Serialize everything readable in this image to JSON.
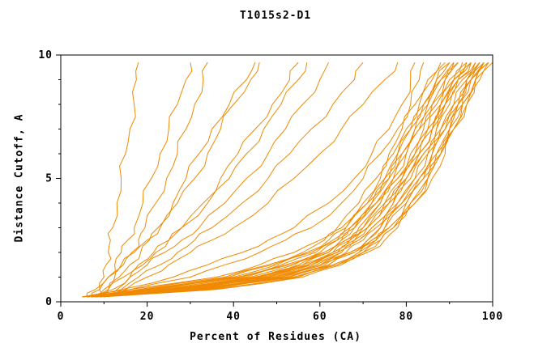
{
  "chart_data": {
    "type": "line",
    "title": "T1015s2-D1",
    "xlabel": "Percent of Residues (CA)",
    "ylabel": "Distance Cutoff, A",
    "xlim": [
      0,
      100
    ],
    "ylim": [
      0,
      10
    ],
    "x_ticks_major": [
      0,
      20,
      40,
      60,
      80,
      100
    ],
    "x_ticks_minor": [
      10,
      30,
      50,
      70,
      90
    ],
    "y_ticks_major": [
      0,
      5,
      10
    ],
    "y_ticks_minor": [
      1,
      2,
      3,
      4,
      6,
      7,
      8,
      9
    ],
    "grid": false,
    "legend": "none",
    "line_color": "#ef8a00",
    "axis_color": "#000000",
    "background": "#ffffff",
    "y_levels": [
      0.2,
      0.5,
      1,
      1.5,
      2,
      2.5,
      3,
      4,
      5,
      6,
      7,
      8,
      9,
      9.7
    ],
    "series": [
      {
        "x": [
          8,
          9,
          10,
          10.5,
          11,
          11.5,
          12,
          13,
          14,
          15,
          16,
          17,
          17.5,
          18
        ]
      },
      {
        "x": [
          7,
          9,
          11,
          12.5,
          14,
          15.5,
          17,
          19,
          21,
          23,
          25,
          27,
          29,
          30
        ]
      },
      {
        "x": [
          8,
          10,
          12.5,
          14.5,
          16.5,
          18,
          19.5,
          22,
          24.5,
          27,
          29,
          31,
          33,
          34
        ]
      },
      {
        "x": [
          9,
          11,
          13.5,
          16,
          18.5,
          20.5,
          22.5,
          26,
          29,
          32,
          35,
          39,
          43,
          45
        ]
      },
      {
        "x": [
          6,
          8,
          11,
          14,
          17,
          20,
          23,
          27,
          31,
          34,
          37,
          40,
          44,
          46
        ]
      },
      {
        "x": [
          10,
          13,
          16,
          19,
          22,
          25,
          28,
          33,
          37,
          41,
          45,
          49,
          53,
          55
        ]
      },
      {
        "x": [
          8,
          11,
          14.5,
          18,
          21.5,
          25,
          28,
          34,
          39,
          43,
          47,
          51,
          55,
          57
        ]
      },
      {
        "x": [
          9,
          12,
          16,
          20,
          24,
          28,
          32,
          38,
          43,
          48,
          52,
          56,
          60,
          62
        ]
      },
      {
        "x": [
          10,
          14,
          18,
          23,
          27,
          31,
          35,
          42,
          48,
          53,
          58,
          63,
          68,
          70
        ]
      },
      {
        "x": [
          11,
          15,
          20,
          25,
          30,
          35,
          40,
          48,
          54,
          60,
          65,
          70,
          75,
          78
        ]
      },
      {
        "x": [
          7,
          14,
          26,
          34,
          42,
          48,
          54,
          62,
          68,
          72,
          76,
          79,
          81,
          82
        ]
      },
      {
        "x": [
          8,
          16,
          30,
          38,
          46,
          52,
          58,
          65,
          70,
          74,
          78,
          81,
          83,
          84
        ]
      },
      {
        "x": [
          5,
          25,
          45,
          55,
          62,
          66,
          69,
          74,
          78,
          81,
          84,
          87,
          90,
          93
        ]
      },
      {
        "x": [
          6,
          28,
          48,
          58,
          64,
          68,
          71,
          76,
          80,
          83,
          86,
          89,
          92,
          95
        ]
      },
      {
        "x": [
          7,
          30,
          50,
          60,
          66,
          70,
          73,
          78,
          82,
          85,
          88,
          91,
          94,
          97
        ]
      },
      {
        "x": [
          8,
          32,
          52,
          62,
          68,
          72,
          75,
          80,
          84,
          87,
          90,
          93,
          96,
          99
        ]
      },
      {
        "x": [
          6,
          26,
          46,
          56,
          63,
          67,
          70,
          75,
          79,
          82,
          85,
          88,
          91,
          94
        ]
      },
      {
        "x": [
          7,
          29,
          49,
          59,
          65,
          69,
          72,
          77,
          81,
          84,
          87,
          90,
          93,
          96
        ]
      },
      {
        "x": [
          5,
          24,
          44,
          54,
          61,
          65,
          68,
          73,
          77,
          80,
          83,
          86,
          89,
          92
        ]
      },
      {
        "x": [
          8,
          33,
          53,
          63,
          69,
          73,
          76,
          81,
          85,
          88,
          91,
          94,
          97,
          100
        ]
      },
      {
        "x": [
          6,
          27,
          47,
          57,
          64,
          68,
          71,
          76,
          80,
          83,
          86,
          89,
          92,
          95
        ]
      },
      {
        "x": [
          7,
          31,
          51,
          61,
          67,
          71,
          74,
          79,
          83,
          86,
          89,
          92,
          95,
          98
        ]
      },
      {
        "x": [
          5,
          22,
          42,
          52,
          60,
          64,
          67,
          72,
          76,
          79,
          82,
          85,
          88,
          91
        ]
      },
      {
        "x": [
          6,
          25,
          45,
          56,
          62,
          66,
          70,
          74,
          78,
          82,
          85,
          88,
          91,
          94
        ]
      },
      {
        "x": [
          9,
          35,
          55,
          64,
          70,
          74,
          77,
          82,
          85,
          88,
          91,
          93,
          96,
          99
        ]
      },
      {
        "x": [
          8,
          34,
          54,
          63,
          69,
          73,
          76,
          80,
          84,
          87,
          90,
          92,
          95,
          98
        ]
      },
      {
        "x": [
          5,
          20,
          40,
          50,
          58,
          63,
          66,
          71,
          75,
          78,
          81,
          84,
          87,
          90
        ]
      },
      {
        "x": [
          6,
          23,
          43,
          53,
          61,
          65,
          68,
          73,
          77,
          80,
          83,
          86,
          89,
          92
        ]
      },
      {
        "x": [
          7,
          28,
          48,
          58,
          65,
          69,
          72,
          77,
          80,
          84,
          87,
          89,
          92,
          96
        ]
      },
      {
        "x": [
          8,
          30,
          50,
          60,
          67,
          71,
          74,
          78,
          82,
          85,
          88,
          91,
          94,
          97
        ]
      },
      {
        "x": [
          5,
          18,
          38,
          48,
          56,
          61,
          65,
          70,
          74,
          77,
          80,
          83,
          86,
          89
        ]
      },
      {
        "x": [
          6,
          21,
          41,
          51,
          59,
          64,
          67,
          72,
          76,
          79,
          82,
          85,
          88,
          91
        ]
      },
      {
        "x": [
          10,
          36,
          56,
          65,
          71,
          75,
          78,
          82,
          86,
          89,
          91,
          94,
          96,
          99
        ]
      },
      {
        "x": [
          9,
          34,
          54,
          64,
          70,
          74,
          77,
          81,
          85,
          88,
          90,
          93,
          95,
          98
        ]
      },
      {
        "x": [
          5,
          16,
          36,
          46,
          54,
          60,
          64,
          69,
          73,
          76,
          79,
          82,
          85,
          88
        ]
      },
      {
        "x": [
          6,
          19,
          39,
          49,
          57,
          62,
          66,
          71,
          75,
          78,
          81,
          84,
          87,
          90
        ]
      },
      {
        "x": [
          7,
          26,
          46,
          57,
          63,
          67,
          71,
          75,
          79,
          83,
          86,
          88,
          91,
          95
        ]
      },
      {
        "x": [
          8,
          31,
          51,
          62,
          68,
          72,
          75,
          79,
          83,
          86,
          89,
          92,
          94,
          97
        ]
      }
    ]
  }
}
